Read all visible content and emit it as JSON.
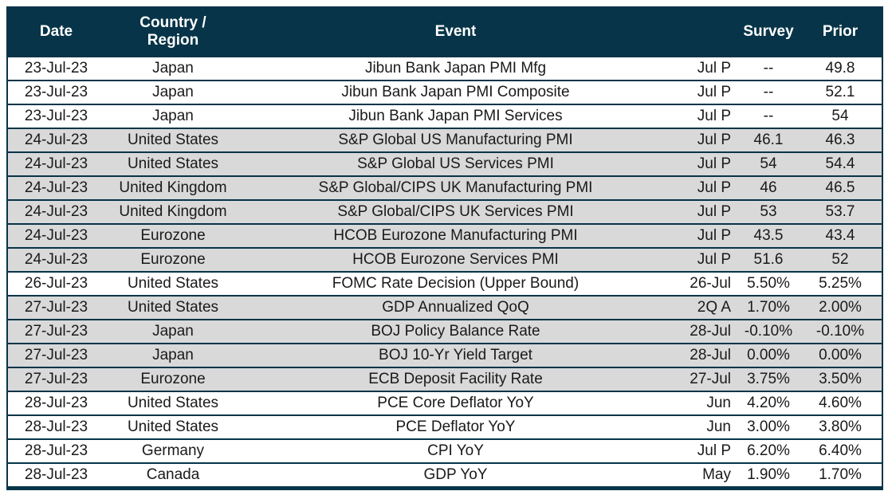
{
  "colors": {
    "header_bg": "#073448",
    "border": "#073448",
    "band_gray": "#d9d9d9",
    "band_white": "#ffffff",
    "header_text": "#ffffff",
    "body_text": "#1a1a1a"
  },
  "chart_data": {
    "type": "table",
    "title": "",
    "legend": "row banding groups events by date: white and gray alternate per date group",
    "columns": [
      {
        "key": "date",
        "label": "Date"
      },
      {
        "key": "country",
        "label": "Country / Region"
      },
      {
        "key": "event",
        "label": "Event"
      },
      {
        "key": "period",
        "label": ""
      },
      {
        "key": "survey",
        "label": "Survey"
      },
      {
        "key": "prior",
        "label": "Prior"
      }
    ],
    "rows": [
      {
        "date": "23-Jul-23",
        "country": "Japan",
        "event": "Jibun Bank Japan PMI Mfg",
        "period": "Jul P",
        "survey": "--",
        "prior": "49.8",
        "band": "white"
      },
      {
        "date": "23-Jul-23",
        "country": "Japan",
        "event": "Jibun Bank Japan PMI Composite",
        "period": "Jul P",
        "survey": "--",
        "prior": "52.1",
        "band": "white"
      },
      {
        "date": "23-Jul-23",
        "country": "Japan",
        "event": "Jibun Bank Japan PMI Services",
        "period": "Jul P",
        "survey": "--",
        "prior": "54",
        "band": "white"
      },
      {
        "date": "24-Jul-23",
        "country": "United States",
        "event": "S&P Global US Manufacturing PMI",
        "period": "Jul P",
        "survey": "46.1",
        "prior": "46.3",
        "band": "gray"
      },
      {
        "date": "24-Jul-23",
        "country": "United States",
        "event": "S&P Global US Services PMI",
        "period": "Jul P",
        "survey": "54",
        "prior": "54.4",
        "band": "gray"
      },
      {
        "date": "24-Jul-23",
        "country": "United Kingdom",
        "event": "S&P Global/CIPS UK Manufacturing PMI",
        "period": "Jul P",
        "survey": "46",
        "prior": "46.5",
        "band": "gray"
      },
      {
        "date": "24-Jul-23",
        "country": "United Kingdom",
        "event": "S&P Global/CIPS UK Services PMI",
        "period": "Jul P",
        "survey": "53",
        "prior": "53.7",
        "band": "gray"
      },
      {
        "date": "24-Jul-23",
        "country": "Eurozone",
        "event": "HCOB Eurozone Manufacturing PMI",
        "period": "Jul P",
        "survey": "43.5",
        "prior": "43.4",
        "band": "gray"
      },
      {
        "date": "24-Jul-23",
        "country": "Eurozone",
        "event": "HCOB Eurozone Services PMI",
        "period": "Jul P",
        "survey": "51.6",
        "prior": "52",
        "band": "gray"
      },
      {
        "date": "26-Jul-23",
        "country": "United States",
        "event": "FOMC Rate Decision (Upper Bound)",
        "period": "26-Jul",
        "survey": "5.50%",
        "prior": "5.25%",
        "band": "white"
      },
      {
        "date": "27-Jul-23",
        "country": "United States",
        "event": "GDP Annualized QoQ",
        "period": "2Q A",
        "survey": "1.70%",
        "prior": "2.00%",
        "band": "gray"
      },
      {
        "date": "27-Jul-23",
        "country": "Japan",
        "event": "BOJ Policy Balance Rate",
        "period": "28-Jul",
        "survey": "-0.10%",
        "prior": "-0.10%",
        "band": "gray"
      },
      {
        "date": "27-Jul-23",
        "country": "Japan",
        "event": "BOJ 10-Yr Yield Target",
        "period": "28-Jul",
        "survey": "0.00%",
        "prior": "0.00%",
        "band": "gray"
      },
      {
        "date": "27-Jul-23",
        "country": "Eurozone",
        "event": "ECB Deposit Facility Rate",
        "period": "27-Jul",
        "survey": "3.75%",
        "prior": "3.50%",
        "band": "gray"
      },
      {
        "date": "28-Jul-23",
        "country": "United States",
        "event": "PCE Core Deflator YoY",
        "period": "Jun",
        "survey": "4.20%",
        "prior": "4.60%",
        "band": "white"
      },
      {
        "date": "28-Jul-23",
        "country": "United States",
        "event": "PCE Deflator YoY",
        "period": "Jun",
        "survey": "3.00%",
        "prior": "3.80%",
        "band": "white"
      },
      {
        "date": "28-Jul-23",
        "country": "Germany",
        "event": "CPI YoY",
        "period": "Jul P",
        "survey": "6.20%",
        "prior": "6.40%",
        "band": "white"
      },
      {
        "date": "28-Jul-23",
        "country": "Canada",
        "event": "GDP YoY",
        "period": "May",
        "survey": "1.90%",
        "prior": "1.70%",
        "band": "white"
      }
    ]
  }
}
